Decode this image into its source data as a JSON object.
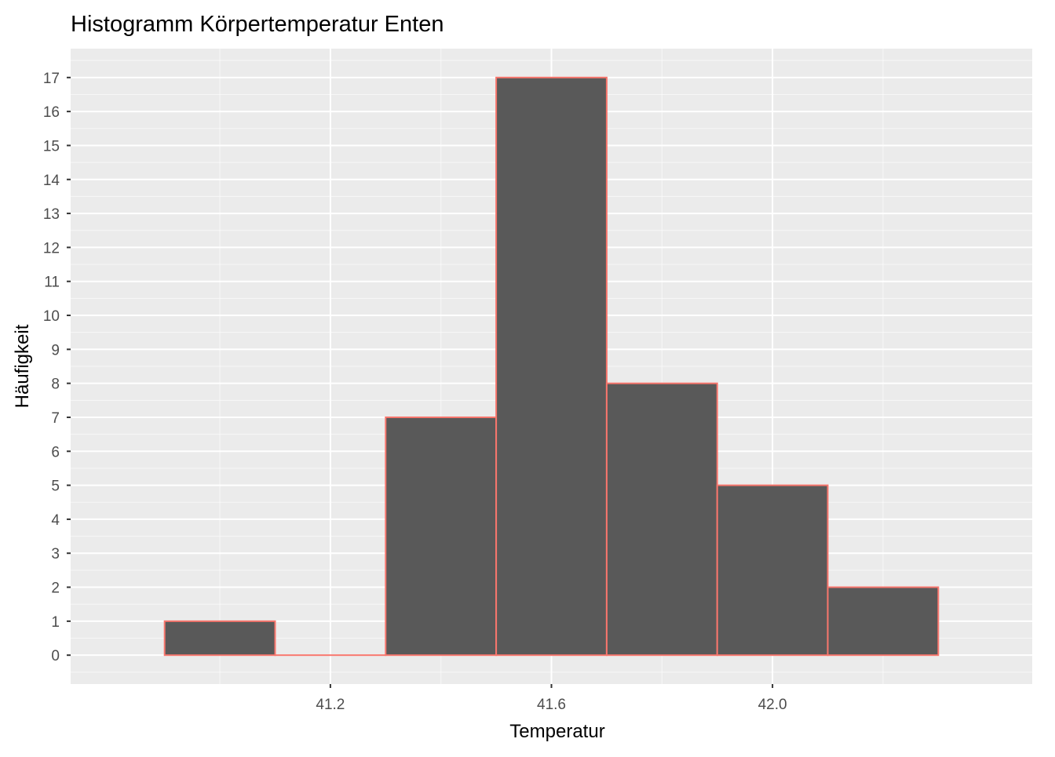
{
  "chart_data": {
    "type": "bar",
    "title": "Histogramm Körpertemperatur Enten",
    "xlabel": "Temperatur",
    "ylabel": "Häufigkeit",
    "bin_width": 0.2,
    "bins": [
      {
        "x0": 40.9,
        "x1": 41.1,
        "count": 1
      },
      {
        "x0": 41.1,
        "x1": 41.3,
        "count": 0
      },
      {
        "x0": 41.3,
        "x1": 41.5,
        "count": 7
      },
      {
        "x0": 41.5,
        "x1": 41.7,
        "count": 17
      },
      {
        "x0": 41.7,
        "x1": 41.9,
        "count": 8
      },
      {
        "x0": 41.9,
        "x1": 42.1,
        "count": 5
      },
      {
        "x0": 42.1,
        "x1": 42.3,
        "count": 2
      }
    ],
    "xlim": [
      40.73,
      42.47
    ],
    "ylim": [
      -0.85,
      17.85
    ],
    "x_ticks": [
      41.2,
      41.6,
      42.0
    ],
    "x_tick_labels": [
      "41.2",
      "41.6",
      "42.0"
    ],
    "y_ticks": [
      0,
      1,
      2,
      3,
      4,
      5,
      6,
      7,
      8,
      9,
      10,
      11,
      12,
      13,
      14,
      15,
      16,
      17
    ],
    "grid": true,
    "legend": "none",
    "colors": {
      "panel_background": "#EBEBEB",
      "grid_major": "#FFFFFF",
      "bar_fill": "#595959",
      "bar_outline": "#F8766D",
      "axis_text": "#4D4D4D",
      "title_text": "#000000"
    }
  }
}
